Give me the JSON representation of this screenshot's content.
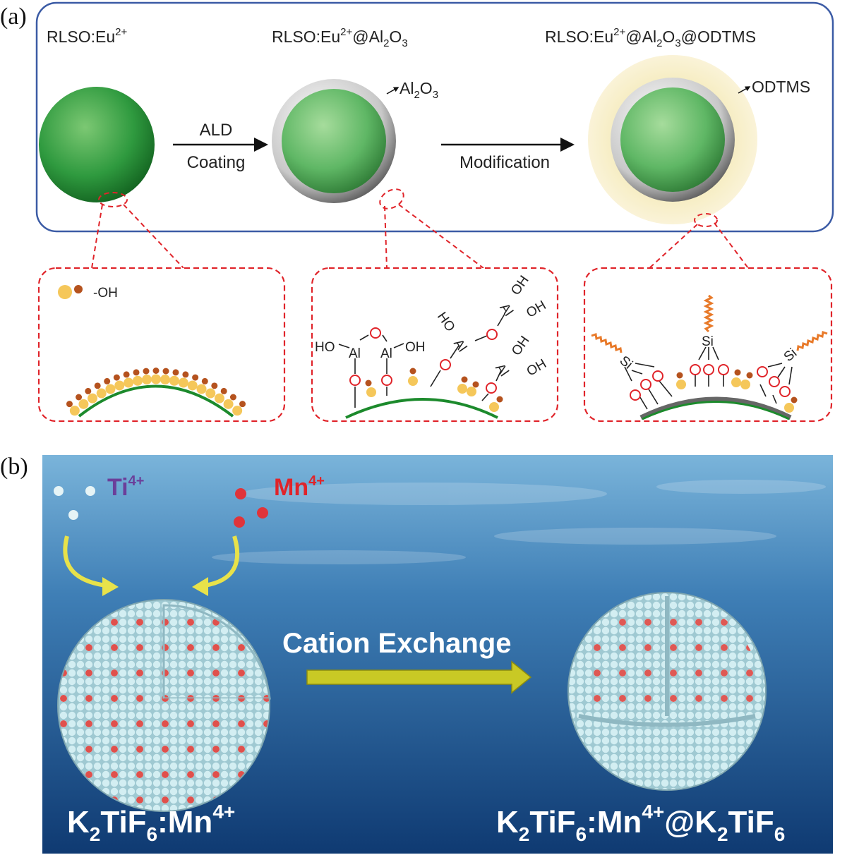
{
  "panel_a": {
    "tag": "(a)",
    "stage1": {
      "base": "RLSO:Eu",
      "sup": "2+"
    },
    "stage2": {
      "base": "RLSO:Eu",
      "sup": "2+",
      "mid": "@Al",
      "sub1": "2",
      "o": "O",
      "sub2": "3"
    },
    "stage3": {
      "base": "RLSO:Eu",
      "sup": "2+",
      "mid": "@Al",
      "sub1": "2",
      "o": "O",
      "sub2": "3",
      "tail": "@ODTMS"
    },
    "arrow1_top": "ALD",
    "arrow1_bottom": "Coating",
    "arrow2_label": "Modification",
    "shell_label": {
      "base": "Al",
      "sub1": "2",
      "o": "O",
      "sub2": "3"
    },
    "coating_label": "ODTMS",
    "legend_oh": "-OH",
    "chem": {
      "ho": "HO",
      "oh": "OH",
      "al": "Al",
      "si": "Si"
    },
    "colors": {
      "frame": "#3b5ba5",
      "dashed": "#e0242a",
      "core": "#2f9a3f",
      "shell": "#9a9a9a",
      "odtms": "#f6edc2",
      "chain": "#e87a2a",
      "oh_large": "#f5c75a",
      "oh_small": "#b5521e"
    }
  },
  "panel_b": {
    "tag": "(b)",
    "ion1": {
      "base": "Ti",
      "sup": "4+"
    },
    "ion2": {
      "base": "Mn",
      "sup": "4+"
    },
    "process": "Cation Exchange",
    "left_label": {
      "k": "K",
      "s1": "2",
      "ti": "TiF",
      "s2": "6",
      "mn": ":Mn",
      "sup": "4+"
    },
    "right_label": {
      "k": "K",
      "s1": "2",
      "ti": "TiF",
      "s2": "6",
      "mn": ":Mn",
      "sup": "4+",
      "at": "@K",
      "s3": "2",
      "ti2": "TiF",
      "s4": "6"
    },
    "colors": {
      "water_top": "#6aa8d0",
      "water_bottom": "#123f78",
      "ti_color": "#6b3f9a",
      "mn_color": "#e0242a",
      "host_atom": "#bfe3ea",
      "dopant_atom": "#e0504c",
      "arrow": "#c9c925"
    }
  }
}
